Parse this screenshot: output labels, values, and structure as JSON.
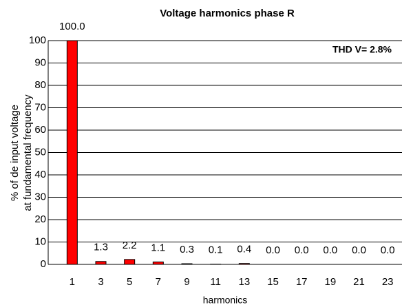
{
  "chart_data": {
    "type": "bar",
    "title": "Voltage harmonics phase R",
    "annotation": "THD V= 2.8%",
    "xlabel": "harmonics",
    "ylabel": [
      "% of de input voltage",
      "at fundamental frequency"
    ],
    "categories": [
      "1",
      "3",
      "5",
      "7",
      "9",
      "11",
      "13",
      "15",
      "17",
      "19",
      "21",
      "23"
    ],
    "values": [
      100,
      1.3,
      2.2,
      1.1,
      0.3,
      0.1,
      0.4,
      0,
      0,
      0,
      0,
      0
    ],
    "value_labels": [
      "100.0",
      "1.3",
      "2.2",
      "1.1",
      "0.3",
      "0.1",
      "0.4",
      "0.0",
      "0.0",
      "0.0",
      "0.0",
      "0.0"
    ],
    "color": "#ff0000",
    "ylim": [
      0,
      100
    ],
    "yticks": [
      0,
      10,
      20,
      30,
      40,
      50,
      60,
      70,
      80,
      90,
      100
    ],
    "grid": true
  }
}
